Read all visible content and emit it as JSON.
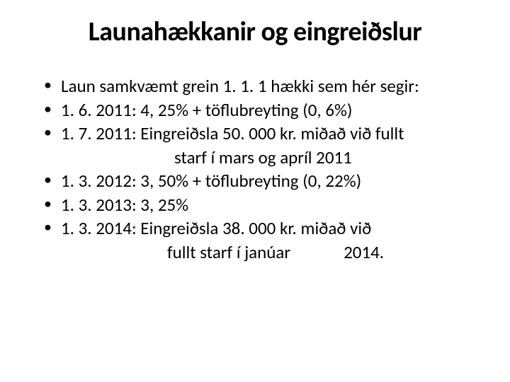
{
  "slide": {
    "title": "Launahækkanir og eingreiðslur",
    "bullets": [
      "Laun samkvæmt grein 1. 1. 1 hækki sem hér segir:",
      "1. 6. 2011: 4, 25% + töflubreyting (0, 6%)",
      "1. 7. 2011: Eingreiðsla 50. 000 kr. miðað við fullt",
      "starf í mars og apríl 2011",
      "1. 3. 2012: 3, 50% + töflubreyting (0, 22%)",
      "1. 3. 2013: 3, 25%",
      "1. 3. 2014: Eingreiðsla 38. 000 kr. miðað við",
      "fullt starf í janúar   2014."
    ],
    "styles": {
      "background_color": "#ffffff",
      "text_color": "#000000",
      "title_fontsize": 38,
      "title_fontweight": "bold",
      "body_fontsize": 25,
      "font_family": "Calibri",
      "bullet_char": "•"
    }
  }
}
